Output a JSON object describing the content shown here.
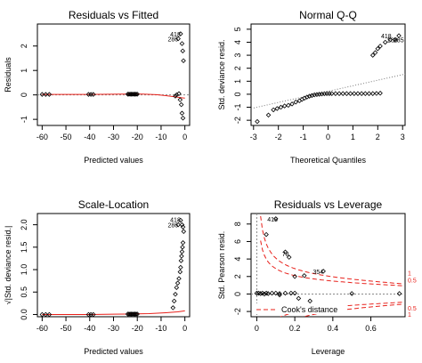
{
  "chart_data": [
    {
      "type": "scatter",
      "title": "Residuals vs Fitted",
      "xlabel": "Predicted values",
      "ylabel": "Residuals",
      "xlim": [
        -62,
        2
      ],
      "ylim": [
        -1.25,
        2.9
      ],
      "xticks": [
        -60,
        -50,
        -40,
        -30,
        -20,
        -10,
        0
      ],
      "yticks": [
        -1,
        0,
        1,
        2
      ],
      "points": [
        [
          -60,
          0.02
        ],
        [
          -58.5,
          0.02
        ],
        [
          -57,
          0.02
        ],
        [
          -40.5,
          0.02
        ],
        [
          -39.5,
          0.02
        ],
        [
          -38.5,
          0.02
        ],
        [
          -24,
          0.03
        ],
        [
          -23.5,
          0.03
        ],
        [
          -23,
          0.03
        ],
        [
          -22.5,
          0.03
        ],
        [
          -22,
          0.03
        ],
        [
          -21.5,
          0.03
        ],
        [
          -21,
          0.03
        ],
        [
          -20.5,
          0.03
        ],
        [
          -20,
          0.03
        ],
        [
          -4,
          -0.05
        ],
        [
          -3.5,
          0.0
        ],
        [
          -2.5,
          0.05
        ],
        [
          -2,
          -0.2
        ],
        [
          -1.5,
          -0.4
        ],
        [
          -1.2,
          -0.75
        ],
        [
          -0.8,
          -0.95
        ],
        [
          -2.8,
          2.3
        ],
        [
          -1.8,
          2.5
        ],
        [
          -1.2,
          2.1
        ],
        [
          -0.9,
          1.8
        ],
        [
          -0.6,
          1.4
        ]
      ],
      "smoother": [
        [
          -60,
          0.02
        ],
        [
          -40,
          0.02
        ],
        [
          -25,
          0.03
        ],
        [
          -18,
          0.03
        ],
        [
          -12,
          0.01
        ],
        [
          -8,
          -0.03
        ],
        [
          -4,
          -0.08
        ],
        [
          -1,
          -0.12
        ],
        [
          0,
          -0.13
        ]
      ],
      "labels": [
        {
          "text": "286",
          "x": -2.8,
          "y": 2.3
        },
        {
          "text": "418",
          "x": -1.8,
          "y": 2.5
        }
      ]
    },
    {
      "type": "scatter",
      "title": "Normal Q-Q",
      "xlabel": "Theoretical Quantiles",
      "ylabel": "Std. deviance resid.",
      "xlim": [
        -3.1,
        3.1
      ],
      "ylim": [
        -2.4,
        5.4
      ],
      "xticks": [
        -3,
        -2,
        -1,
        0,
        1,
        2,
        3
      ],
      "yticks": [
        -2,
        -1,
        0,
        1,
        2,
        3,
        4,
        5
      ],
      "points": [
        [
          -2.85,
          -2.1
        ],
        [
          -2.4,
          -1.6
        ],
        [
          -2.2,
          -1.2
        ],
        [
          -2.05,
          -1.1
        ],
        [
          -1.9,
          -1.0
        ],
        [
          -1.75,
          -0.9
        ],
        [
          -1.6,
          -0.85
        ],
        [
          -1.45,
          -0.75
        ],
        [
          -1.3,
          -0.6
        ],
        [
          -1.15,
          -0.5
        ],
        [
          -1.05,
          -0.4
        ],
        [
          -0.95,
          -0.3
        ],
        [
          -0.85,
          -0.22
        ],
        [
          -0.75,
          -0.15
        ],
        [
          -0.65,
          -0.1
        ],
        [
          -0.55,
          -0.05
        ],
        [
          -0.45,
          -0.02
        ],
        [
          -0.35,
          0.0
        ],
        [
          -0.25,
          0.02
        ],
        [
          -0.15,
          0.04
        ],
        [
          -0.05,
          0.05
        ],
        [
          0.05,
          0.05
        ],
        [
          0.15,
          0.05
        ],
        [
          0.3,
          0.05
        ],
        [
          0.45,
          0.05
        ],
        [
          0.6,
          0.05
        ],
        [
          0.75,
          0.05
        ],
        [
          0.9,
          0.05
        ],
        [
          1.05,
          0.05
        ],
        [
          1.2,
          0.05
        ],
        [
          1.35,
          0.05
        ],
        [
          1.5,
          0.05
        ],
        [
          1.65,
          0.05
        ],
        [
          1.8,
          0.05
        ],
        [
          1.95,
          0.06
        ],
        [
          2.1,
          0.08
        ],
        [
          1.8,
          3.0
        ],
        [
          1.9,
          3.2
        ],
        [
          2.0,
          3.5
        ],
        [
          2.1,
          3.7
        ],
        [
          2.3,
          4.0
        ],
        [
          2.5,
          4.2
        ],
        [
          2.7,
          4.2
        ],
        [
          2.85,
          4.5
        ]
      ],
      "refline": [
        [
          -3.1,
          -1.1
        ],
        [
          3.1,
          1.55
        ]
      ],
      "labels": [
        {
          "text": "418",
          "x": 2.55,
          "y": 4.5
        },
        {
          "text": "286",
          "x": 2.8,
          "y": 4.2
        },
        {
          "text": "285",
          "x": 3.05,
          "y": 4.2
        }
      ]
    },
    {
      "type": "scatter",
      "title": "Scale-Location",
      "xlabel": "Predicted values",
      "ylabel": "√|Std. deviance resid.|",
      "xlim": [
        -62,
        2
      ],
      "ylim": [
        -0.05,
        2.25
      ],
      "xticks": [
        -60,
        -50,
        -40,
        -30,
        -20,
        -10,
        0
      ],
      "yticks": [
        0.0,
        0.5,
        1.0,
        1.5,
        2.0
      ],
      "points": [
        [
          -60,
          0.0
        ],
        [
          -58.5,
          0.0
        ],
        [
          -57,
          0.0
        ],
        [
          -40.5,
          0.0
        ],
        [
          -39.5,
          0.0
        ],
        [
          -38.5,
          0.0
        ],
        [
          -24,
          0.01
        ],
        [
          -23.5,
          0.01
        ],
        [
          -23,
          0.01
        ],
        [
          -22.5,
          0.01
        ],
        [
          -22,
          0.01
        ],
        [
          -21.5,
          0.01
        ],
        [
          -21,
          0.01
        ],
        [
          -20.5,
          0.01
        ],
        [
          -20,
          0.01
        ],
        [
          -5,
          0.15
        ],
        [
          -4.5,
          0.3
        ],
        [
          -4,
          0.45
        ],
        [
          -3.5,
          0.6
        ],
        [
          -3,
          0.7
        ],
        [
          -2.5,
          0.8
        ],
        [
          -2,
          0.95
        ],
        [
          -1.8,
          1.05
        ],
        [
          -1.6,
          1.2
        ],
        [
          -1.4,
          1.3
        ],
        [
          -1.2,
          1.4
        ],
        [
          -1.0,
          1.5
        ],
        [
          -0.8,
          1.6
        ],
        [
          -0.5,
          1.85
        ],
        [
          -0.8,
          1.95
        ],
        [
          -2.8,
          2.0
        ],
        [
          -1.8,
          2.1
        ],
        [
          -1.2,
          2.0
        ]
      ],
      "smoother": [
        [
          -60,
          0.0
        ],
        [
          -40,
          0.0
        ],
        [
          -25,
          0.01
        ],
        [
          -15,
          0.02
        ],
        [
          -8,
          0.04
        ],
        [
          -3,
          0.06
        ],
        [
          0,
          0.08
        ]
      ],
      "labels": [
        {
          "text": "286",
          "x": -2.8,
          "y": 2.0
        },
        {
          "text": "418",
          "x": -1.8,
          "y": 2.12
        }
      ]
    },
    {
      "type": "scatter",
      "title": "Residuals vs Leverage",
      "xlabel": "Leverage",
      "ylabel": "Std. Pearson resid.",
      "xlim": [
        -0.03,
        0.78
      ],
      "ylim": [
        -2.6,
        9.2
      ],
      "xticks": [
        0.0,
        0.2,
        0.4,
        0.6
      ],
      "yticks": [
        -2,
        0,
        2,
        4,
        6,
        8
      ],
      "points": [
        [
          0.0,
          0.1
        ],
        [
          0.01,
          0.1
        ],
        [
          0.02,
          0.05
        ],
        [
          0.03,
          0.1
        ],
        [
          0.04,
          0.0
        ],
        [
          0.05,
          0.1
        ],
        [
          0.06,
          0.05
        ],
        [
          0.08,
          0.1
        ],
        [
          0.1,
          0.1
        ],
        [
          0.12,
          0.05
        ],
        [
          0.15,
          0.1
        ],
        [
          0.18,
          0.1
        ],
        [
          0.2,
          0.1
        ],
        [
          0.12,
          -0.1
        ],
        [
          0.22,
          -0.5
        ],
        [
          0.28,
          -0.8
        ],
        [
          0.5,
          0.05
        ],
        [
          0.75,
          0.05
        ],
        [
          0.05,
          6.8
        ],
        [
          0.1,
          8.6
        ],
        [
          0.15,
          4.8
        ],
        [
          0.17,
          4.2
        ],
        [
          0.2,
          2.0
        ],
        [
          0.25,
          2.1
        ],
        [
          0.35,
          2.6
        ]
      ],
      "labels": [
        {
          "text": "418",
          "x": 0.11,
          "y": 8.6
        },
        {
          "text": "78",
          "x": 0.17,
          "y": 4.6
        },
        {
          "text": "354",
          "x": 0.35,
          "y": 2.6
        }
      ],
      "contour_labels": [
        {
          "text": "1",
          "y": 2.3
        },
        {
          "text": "0.5",
          "y": 1.5
        },
        {
          "text": "0.5",
          "y": -1.7
        },
        {
          "text": "1",
          "y": -2.4
        }
      ],
      "legend": "Cook's distance"
    }
  ]
}
